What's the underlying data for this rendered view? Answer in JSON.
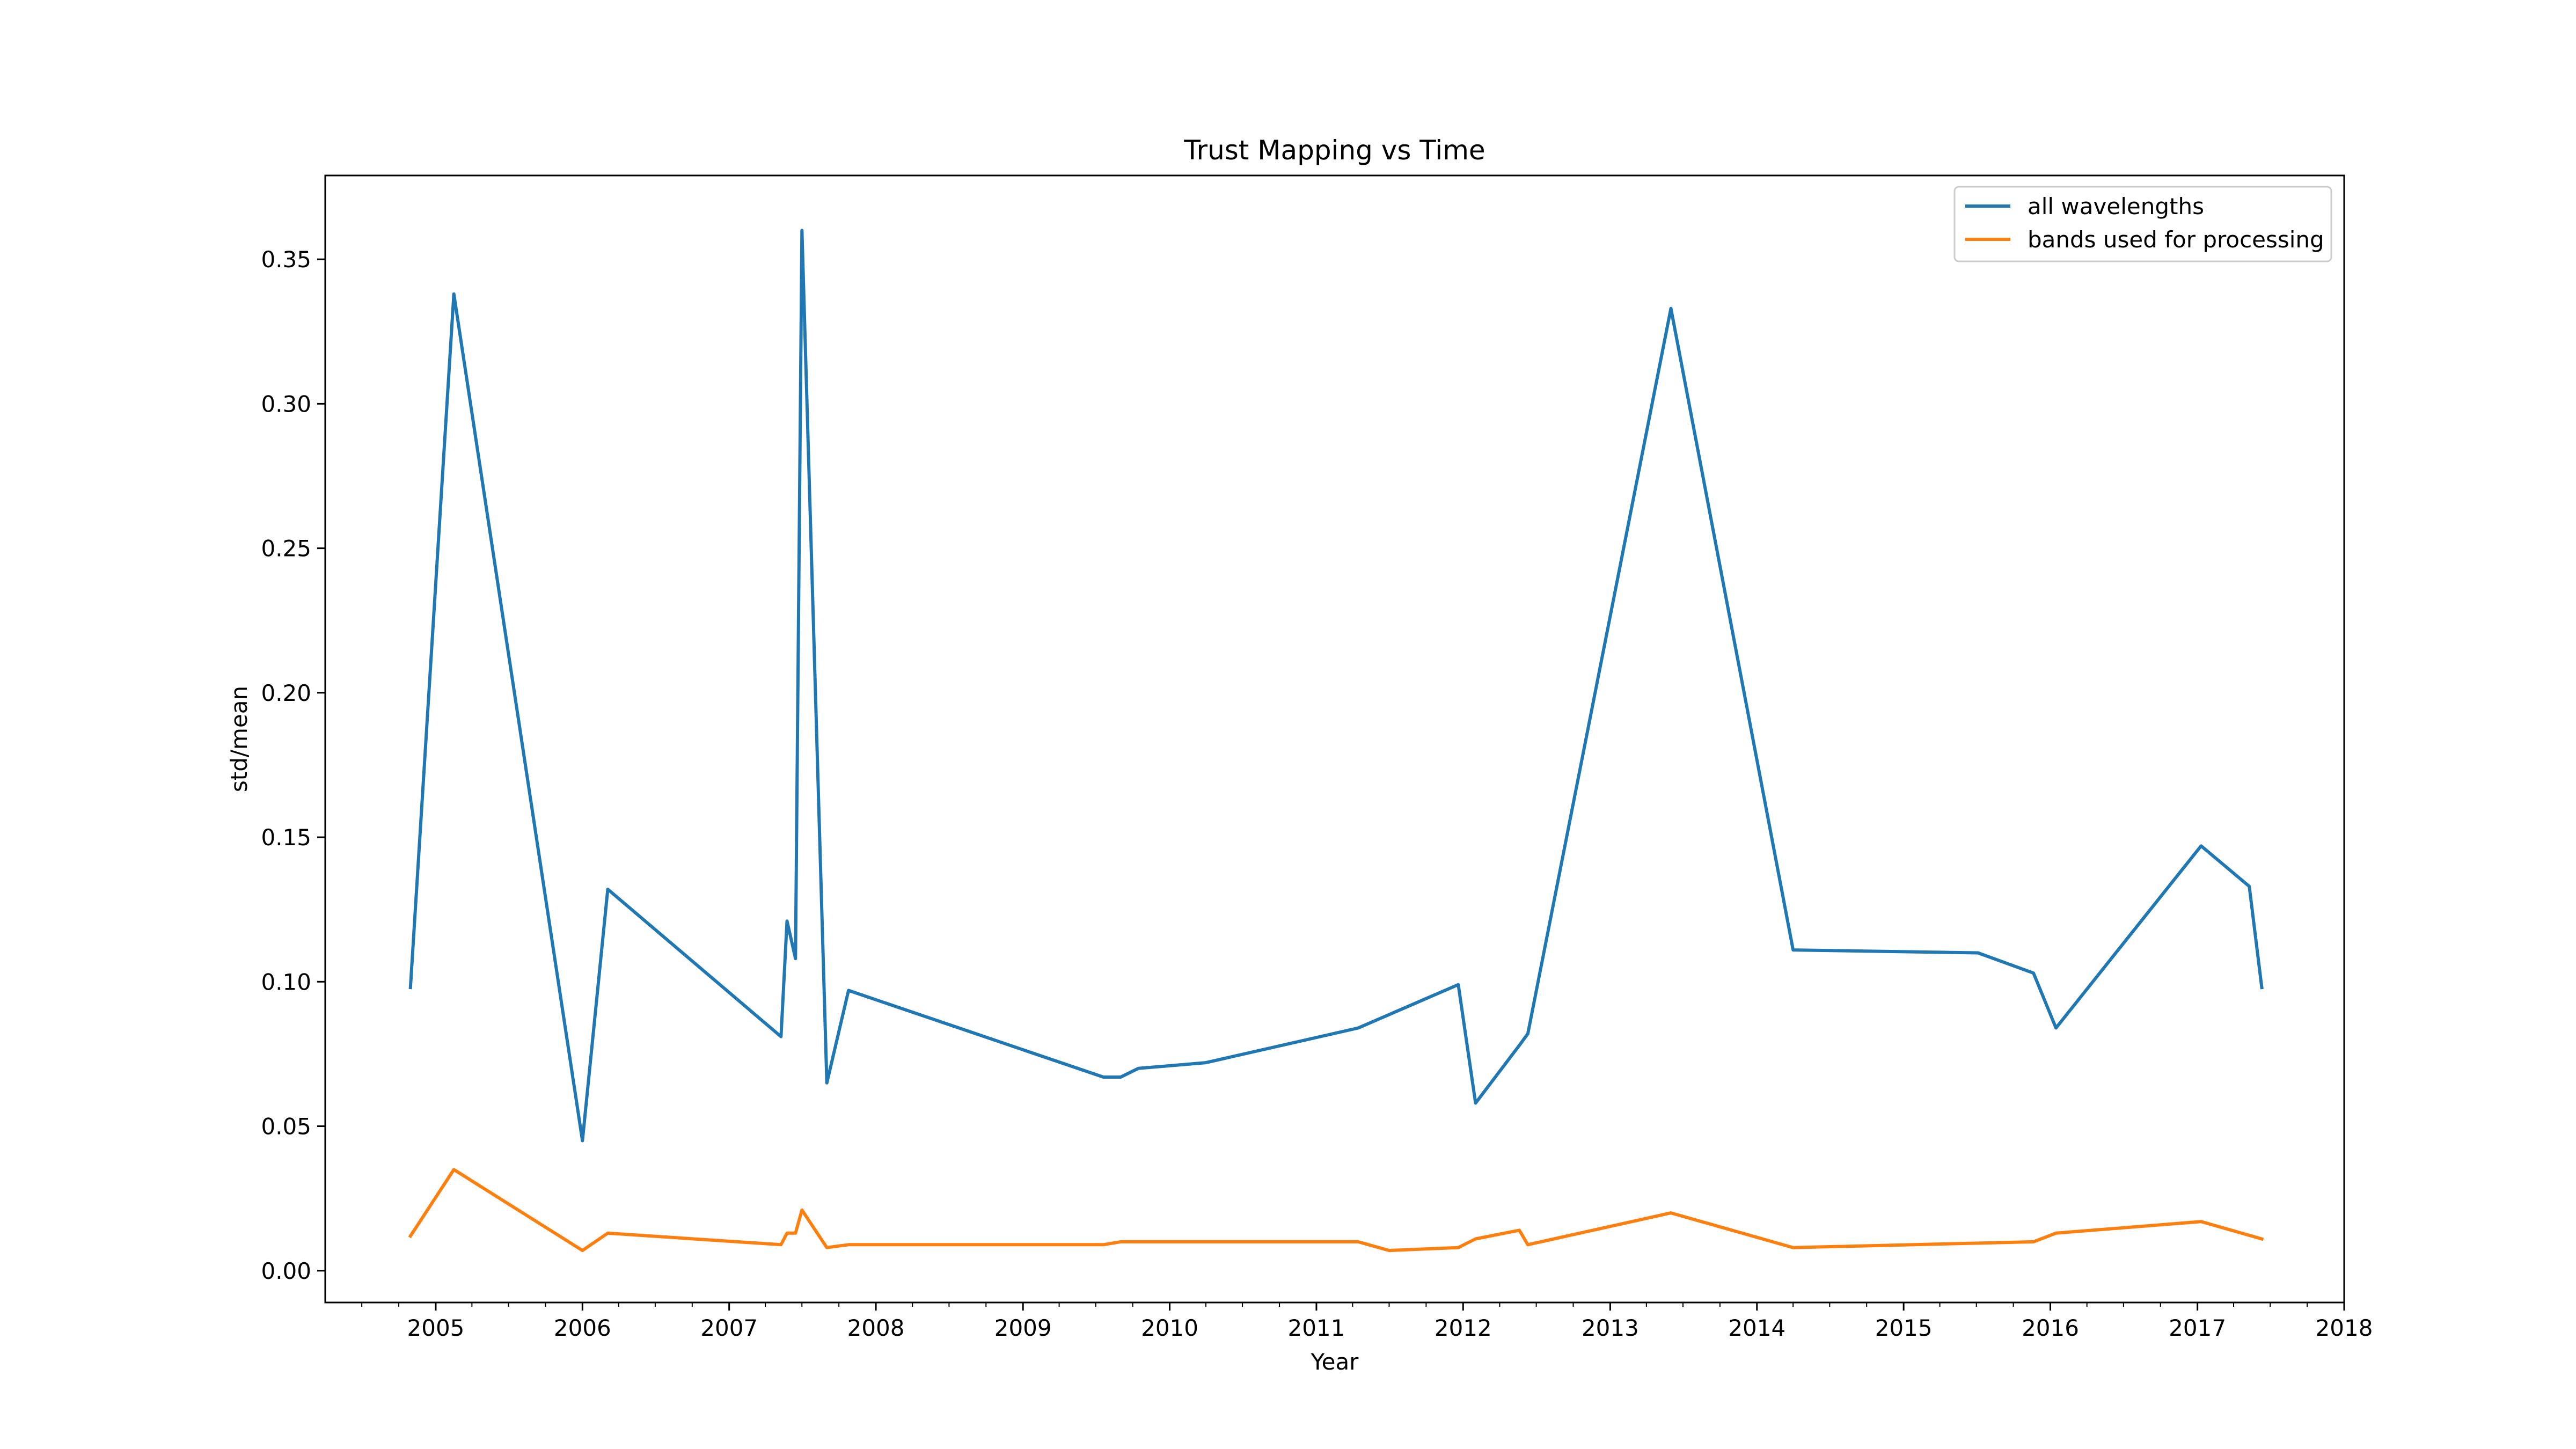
{
  "chart_data": {
    "type": "line",
    "title": "Trust Mapping vs Time",
    "xlabel": "Year",
    "ylabel": "std/mean",
    "x_axis_type": "date",
    "xlim": [
      "2004-04-01",
      "2018-01-01"
    ],
    "ylim": [
      -0.011,
      0.379
    ],
    "xticks": [
      "2005",
      "2006",
      "2007",
      "2008",
      "2009",
      "2010",
      "2011",
      "2012",
      "2013",
      "2014",
      "2015",
      "2016",
      "2017",
      "2018"
    ],
    "yticks": [
      "0.00",
      "0.05",
      "0.10",
      "0.15",
      "0.20",
      "0.25",
      "0.30",
      "0.35"
    ],
    "grid": false,
    "legend_position": "top-right",
    "colors": {
      "all_wavelengths": "#1f77b4",
      "bands_used": "#ff7f0e"
    },
    "series": [
      {
        "name": "all wavelengths",
        "color": "#1f77b4",
        "points": [
          [
            "2004-10-30",
            0.098
          ],
          [
            "2005-02-15",
            0.338
          ],
          [
            "2005-11-15",
            0.088
          ],
          [
            "2006-01-01",
            0.045
          ],
          [
            "2006-03-05",
            0.132
          ],
          [
            "2007-05-10",
            0.081
          ],
          [
            "2007-05-25",
            0.121
          ],
          [
            "2007-06-15",
            0.108
          ],
          [
            "2007-07-01",
            0.36
          ],
          [
            "2007-09-01",
            0.065
          ],
          [
            "2007-10-25",
            0.097
          ],
          [
            "2009-07-20",
            0.067
          ],
          [
            "2009-09-01",
            0.067
          ],
          [
            "2009-10-15",
            0.07
          ],
          [
            "2010-04-01",
            0.072
          ],
          [
            "2011-04-15",
            0.084
          ],
          [
            "2011-12-20",
            0.099
          ],
          [
            "2012-02-01",
            0.058
          ],
          [
            "2012-05-20",
            0.078
          ],
          [
            "2012-06-10",
            0.082
          ],
          [
            "2013-06-01",
            0.333
          ],
          [
            "2014-04-01",
            0.111
          ],
          [
            "2015-07-05",
            0.11
          ],
          [
            "2015-11-20",
            0.103
          ],
          [
            "2016-01-15",
            0.084
          ],
          [
            "2017-01-10",
            0.147
          ],
          [
            "2017-05-10",
            0.133
          ],
          [
            "2017-06-10",
            0.098
          ]
        ]
      },
      {
        "name": "bands used for processing",
        "color": "#ff7f0e",
        "points": [
          [
            "2004-10-30",
            0.012
          ],
          [
            "2005-02-15",
            0.035
          ],
          [
            "2006-01-01",
            0.007
          ],
          [
            "2006-03-05",
            0.013
          ],
          [
            "2007-05-10",
            0.009
          ],
          [
            "2007-05-25",
            0.013
          ],
          [
            "2007-06-15",
            0.013
          ],
          [
            "2007-07-01",
            0.021
          ],
          [
            "2007-09-01",
            0.008
          ],
          [
            "2007-10-25",
            0.009
          ],
          [
            "2009-07-20",
            0.009
          ],
          [
            "2009-09-01",
            0.01
          ],
          [
            "2010-04-01",
            0.01
          ],
          [
            "2011-04-15",
            0.01
          ],
          [
            "2011-07-01",
            0.007
          ],
          [
            "2011-12-20",
            0.008
          ],
          [
            "2012-02-01",
            0.011
          ],
          [
            "2012-05-20",
            0.014
          ],
          [
            "2012-06-10",
            0.009
          ],
          [
            "2013-06-01",
            0.02
          ],
          [
            "2014-04-01",
            0.008
          ],
          [
            "2015-11-20",
            0.01
          ],
          [
            "2016-01-15",
            0.013
          ],
          [
            "2017-01-10",
            0.017
          ],
          [
            "2017-06-10",
            0.011
          ]
        ]
      }
    ]
  }
}
